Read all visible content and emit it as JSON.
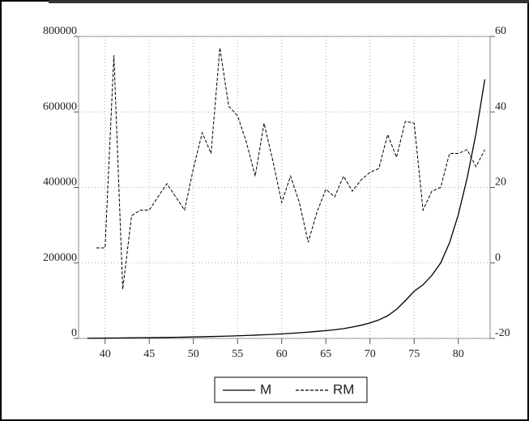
{
  "chart_data": {
    "type": "line",
    "x": [
      38,
      39,
      40,
      41,
      42,
      43,
      44,
      45,
      46,
      47,
      48,
      49,
      50,
      51,
      52,
      53,
      54,
      55,
      56,
      57,
      58,
      59,
      60,
      61,
      62,
      63,
      64,
      65,
      66,
      67,
      68,
      69,
      70,
      71,
      72,
      73,
      74,
      75,
      76,
      77,
      78,
      79,
      80,
      81,
      82,
      83
    ],
    "xlim": [
      37,
      83.6
    ],
    "xticks": [
      40,
      45,
      50,
      55,
      60,
      65,
      70,
      75,
      80
    ],
    "ylim": [
      0,
      800000
    ],
    "yticks": [
      0,
      200000,
      400000,
      600000,
      800000
    ],
    "y2lim": [
      -20,
      60
    ],
    "y2ticks": [
      -20,
      0,
      20,
      40,
      60
    ],
    "grid": true,
    "legend": "bottom",
    "series": [
      {
        "name": "M",
        "color": "#000000",
        "line_style": "solid",
        "values": [
          500,
          700,
          900,
          1100,
          1300,
          1500,
          1800,
          2000,
          2300,
          2600,
          3000,
          3400,
          3900,
          4400,
          5000,
          5600,
          6200,
          7000,
          7800,
          8700,
          9700,
          10800,
          12000,
          13400,
          15000,
          16700,
          18600,
          20700,
          23000,
          26000,
          30000,
          35000,
          41000,
          49000,
          60000,
          77000,
          100000,
          125000,
          142000,
          167000,
          200000,
          253000,
          328000,
          425000,
          543000,
          686000
        ]
      },
      {
        "name": "RM",
        "color": "#000000",
        "line_style": "dashed",
        "axis": "y2",
        "values": [
          null,
          4,
          4,
          55,
          -7,
          12.5,
          14,
          14,
          17.5,
          21,
          17.5,
          14,
          25,
          34.5,
          29,
          57,
          41.5,
          39,
          32,
          23,
          37,
          27,
          16,
          23,
          16,
          5.5,
          13.5,
          19.5,
          17.5,
          23,
          19,
          22,
          24,
          25,
          34,
          28,
          37.5,
          37,
          14,
          19,
          20,
          29,
          29,
          30,
          25.5,
          30
        ]
      }
    ]
  }
}
